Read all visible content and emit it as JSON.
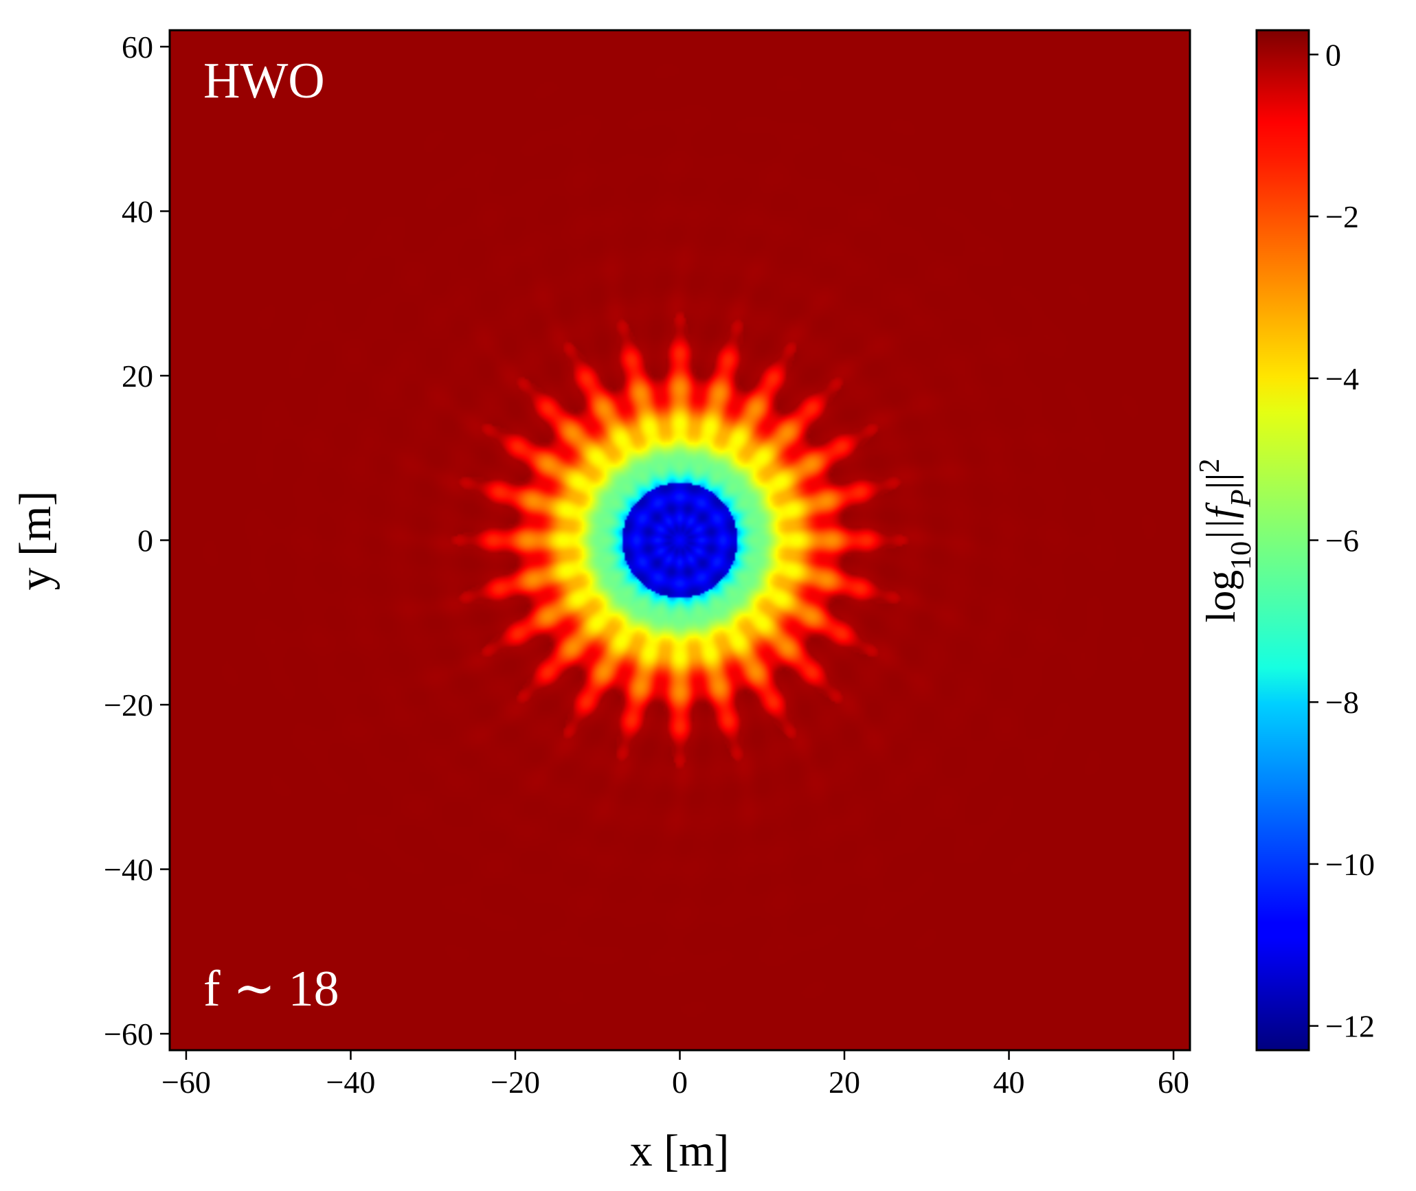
{
  "chart_data": {
    "type": "heatmap",
    "title": "",
    "xlabel": "x [m]",
    "ylabel": "y [m]",
    "xlim": [
      -62,
      62
    ],
    "ylim": [
      -62,
      62
    ],
    "xticks": [
      -60,
      -40,
      -20,
      0,
      20,
      40,
      60
    ],
    "yticks": [
      -60,
      -40,
      -20,
      0,
      20,
      40,
      60
    ],
    "xtick_labels": [
      "−60",
      "−40",
      "−20",
      "0",
      "20",
      "40",
      "60"
    ],
    "ytick_labels": [
      "−60",
      "−40",
      "−20",
      "0",
      "20",
      "40",
      "60"
    ],
    "annotations": {
      "telescope": "HWO",
      "frequency": "f ∼ 18"
    },
    "colorbar": {
      "label_main": "log",
      "label_sub": "10",
      "label_tail": "||f",
      "label_tail_sub": "P",
      "label_end": "||",
      "label_sup": "2",
      "range": [
        -12.3,
        0.3
      ],
      "ticks": [
        0,
        -2,
        -4,
        -6,
        -8,
        -10,
        -12
      ],
      "tick_labels": [
        "0",
        "−2",
        "−4",
        "−6",
        "−8",
        "−10",
        "−12"
      ],
      "colormap": "jet"
    },
    "field": {
      "background_value": 0,
      "center_value": -11,
      "inner_disk_radius": 7,
      "flower_radius": 20,
      "petal_count": 24,
      "petal_tip_radius": 28
    },
    "colors": {
      "frame": "#000000",
      "background_red": "#930000",
      "annotation_text": "#ffffff"
    }
  }
}
